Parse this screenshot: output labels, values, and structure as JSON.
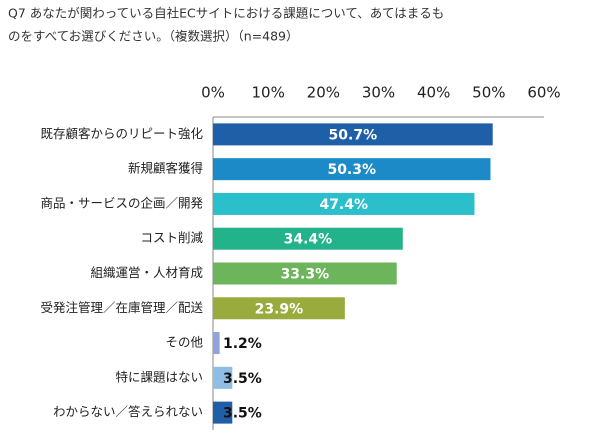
{
  "chart_data": {
    "type": "bar",
    "orientation": "horizontal",
    "title": [
      "Q7 あなたが関わっている自社ECサイトにおける課題について、あてはまるも",
      "のをすべてお選びください。（複数選択）（n=489）"
    ],
    "categories": [
      "既存顧客からのリピート強化",
      "新規顧客獲得",
      "商品・サービスの企画／開発",
      "コスト削減",
      "組織運営・人材育成",
      "受発注管理／在庫管理／配送",
      "その他",
      "特に課題はない",
      "わからない／答えられない"
    ],
    "values": [
      50.7,
      50.3,
      47.4,
      34.4,
      33.3,
      23.9,
      1.2,
      3.5,
      3.5
    ],
    "value_labels": [
      "50.7%",
      "50.3%",
      "47.4%",
      "34.4%",
      "33.3%",
      "23.9%",
      "1.2%",
      "3.5%",
      "3.5%"
    ],
    "colors": [
      "#1f5fa8",
      "#1b8ac6",
      "#2bbfcc",
      "#22b38a",
      "#6db55b",
      "#9aab3d",
      "#8fa4d8",
      "#8fbde6",
      "#1f5fa8"
    ],
    "xlim": [
      0,
      60
    ],
    "xticks": [
      {
        "value": 0,
        "label": "0%"
      },
      {
        "value": 10,
        "label": "10%"
      },
      {
        "value": 20,
        "label": "20%"
      },
      {
        "value": 30,
        "label": "30%"
      },
      {
        "value": 40,
        "label": "40%"
      },
      {
        "value": 50,
        "label": "50%"
      },
      {
        "value": 60,
        "label": "60%"
      }
    ]
  }
}
